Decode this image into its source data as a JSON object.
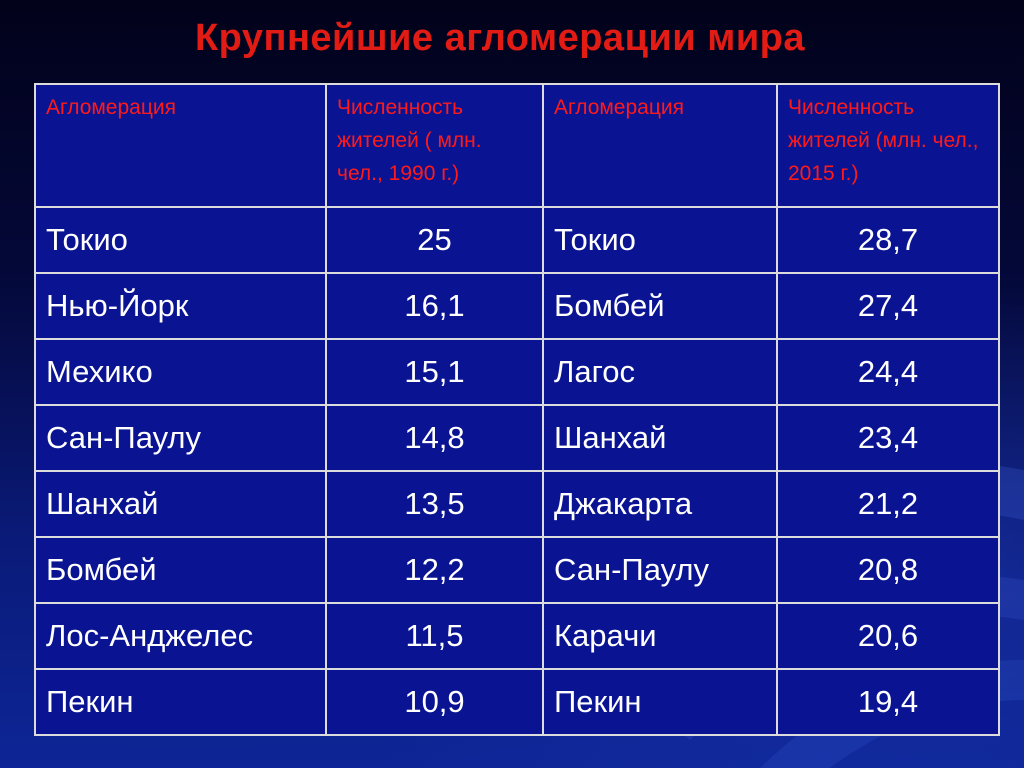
{
  "slide": {
    "title": "Крупнейшие агломерации мира"
  },
  "table": {
    "headers": [
      "Агломерация",
      "Численность жителей ( млн. чел., 1990 г.)",
      "Агломерация",
      "Численность жителей (млн. чел., 2015 г.)"
    ],
    "rows": [
      [
        "Токио",
        "25",
        "Токио",
        "28,7"
      ],
      [
        "Нью-Йорк",
        "16,1",
        "Бомбей",
        "27,4"
      ],
      [
        "Мехико",
        "15,1",
        "Лагос",
        "24,4"
      ],
      [
        "Сан-Паулу",
        "14,8",
        "Шанхай",
        "23,4"
      ],
      [
        "Шанхай",
        "13,5",
        "Джакарта",
        "21,2"
      ],
      [
        "Бомбей",
        "12,2",
        "Сан-Паулу",
        "20,8"
      ],
      [
        "Лос-Анджелес",
        "11,5",
        "Карачи",
        "20,6"
      ],
      [
        "Пекин",
        "10,9",
        "Пекин",
        "19,4"
      ]
    ]
  },
  "colors": {
    "title": "#e21b14",
    "header_text": "#ff1a1a",
    "cell_text": "#ffffff",
    "grid": "#dcdcdc",
    "table_fill": "#0a1493"
  }
}
